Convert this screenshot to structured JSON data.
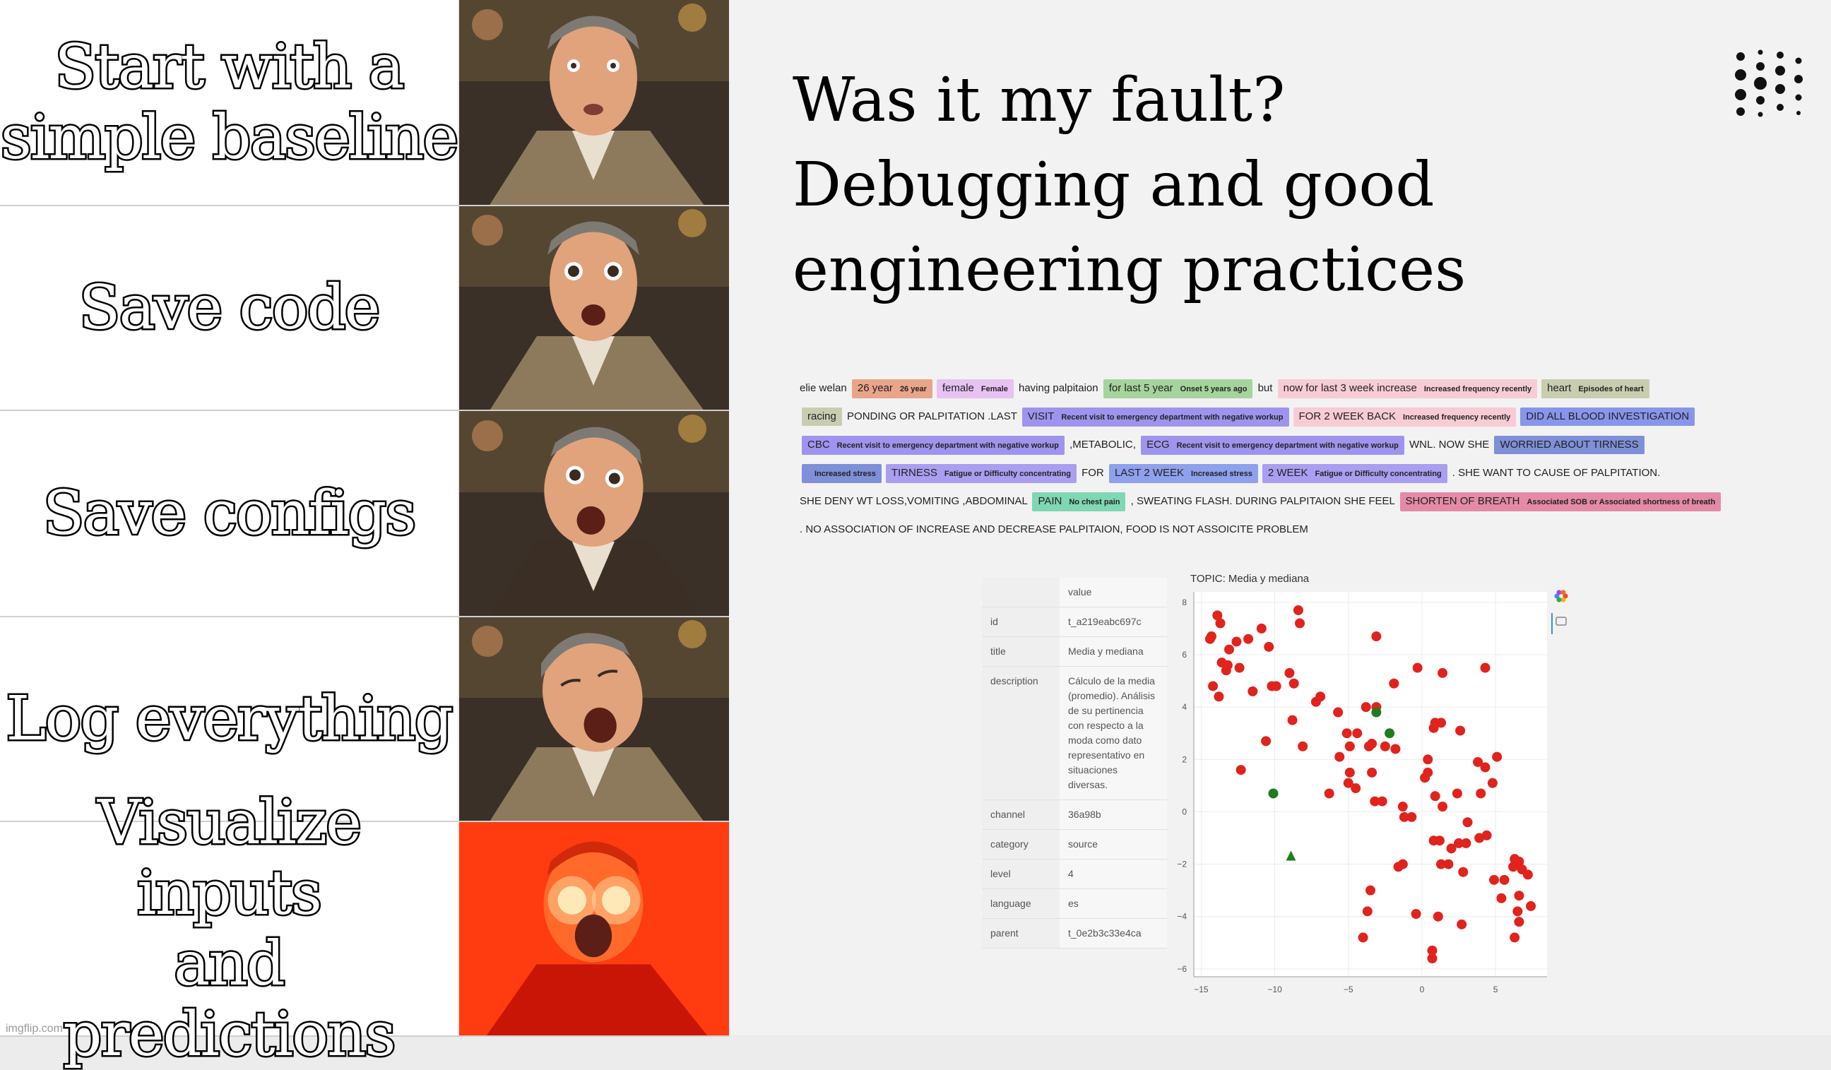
{
  "meme": {
    "rows": [
      {
        "caption": "Start with a\nsimple baseline",
        "image": "reaction-face-neutral"
      },
      {
        "caption": "Save code",
        "image": "reaction-face-surprised"
      },
      {
        "caption": "Save configs",
        "image": "reaction-face-amazed"
      },
      {
        "caption": "Log everything",
        "image": "reaction-face-ecstatic"
      },
      {
        "caption": "Visualize inputs\nand predictions",
        "image": "reaction-face-glowing-eyes"
      }
    ],
    "watermark": "imgflip.com"
  },
  "slide": {
    "title": "Was it my fault?\nDebugging and good\nengineering practices",
    "logo_icon": "dots-logo-icon",
    "ner_lines": [
      [
        {
          "t": "elie welan"
        },
        {
          "t": "26 year",
          "l": "26 year",
          "c": "#e9a58a"
        },
        {
          "t": "female",
          "l": "Female",
          "c": "#e7c2f2"
        },
        {
          "t": "having palpitaion"
        },
        {
          "t": "for last 5 year",
          "l": "Onset 5 years ago",
          "c": "#a5d49c"
        },
        {
          "t": "but"
        },
        {
          "t": "now for last 3 week increase",
          "l": "Increased frequency recently",
          "c": "#f7ccd5"
        },
        {
          "t": "heart",
          "l": "Episodes of heart",
          "c": "#c8cdb0"
        }
      ],
      [
        {
          "t": "racing",
          "c": "#c8cdb0"
        },
        {
          "t": "PONDING OR PALPITATION .LAST"
        },
        {
          "t": "VISIT",
          "l": "Recent visit to emergency department with negative workup",
          "c": "#9e94ee"
        },
        {
          "t": "FOR 2 WEEK BACK",
          "l": "Increased frequency recently",
          "c": "#f7ccd5"
        },
        {
          "t": "DID ALL BLOOD INVESTIGATION",
          "c": "#8795ea"
        }
      ],
      [
        {
          "t": "CBC",
          "l": "Recent visit to emergency department with negative workup",
          "c": "#9e94ee"
        },
        {
          "t": ",METABOLIC,"
        },
        {
          "t": "ECG",
          "l": "Recent visit to emergency department with negative workup",
          "c": "#9e94ee"
        },
        {
          "t": "WNL. NOW SHE"
        },
        {
          "t": "WORRIED ABOUT TIRNESS",
          "c": "#7f8fd8"
        }
      ],
      [
        {
          "t": "",
          "l": "Increased stress",
          "c": "#7f8fd8"
        },
        {
          "t": "TIRNESS",
          "l": "Fatigue or Difficulty concentrating",
          "c": "#a99ef0"
        },
        {
          "t": "FOR"
        },
        {
          "t": "LAST 2 WEEK",
          "l": "Increased stress",
          "c": "#8fa0ec"
        },
        {
          "t": "2 WEEK",
          "l": "Fatigue or Difficulty concentrating",
          "c": "#a99ef0"
        },
        {
          "t": ". SHE WANT TO CAUSE OF PALPITATION."
        }
      ],
      [
        {
          "t": "SHE DENY WT LOSS,VOMITING ,ABDOMINAL"
        },
        {
          "t": "PAIN",
          "l": "No chest pain",
          "c": "#7fd7b3"
        },
        {
          "t": ", SWEATING FLASH. DURING PALPITAION SHE FEEL"
        },
        {
          "t": "SHORTEN OF BREATH",
          "l": "Associated SOB or Associated shortness of breath",
          "c": "#e48aa7"
        }
      ],
      [
        {
          "t": ". NO ASSOCIATION OF INCREASE AND DECREASE PALPITAION, FOOD IS NOT ASSOICITE PROBLEM"
        }
      ]
    ],
    "table": {
      "header_value": "value",
      "rows": [
        {
          "key": "id",
          "value": "t_a219eabc697c"
        },
        {
          "key": "title",
          "value": "Media y mediana"
        },
        {
          "key": "description",
          "value": "Cálculo de la media (promedio). Análisis de su pertinencia con respecto a la moda como dato representativo en situaciones diversas."
        },
        {
          "key": "channel",
          "value": "36a98b"
        },
        {
          "key": "category",
          "value": "source"
        },
        {
          "key": "level",
          "value": "4"
        },
        {
          "key": "language",
          "value": "es"
        },
        {
          "key": "parent",
          "value": "t_0e2b3c33e4ca"
        }
      ]
    }
  },
  "chart_data": {
    "type": "scatter",
    "title": "TOPIC: Media y mediana",
    "xlim": [
      -15.5,
      8.5
    ],
    "ylim": [
      -6.3,
      8.4
    ],
    "xticks": [
      -15,
      -10,
      -5,
      0,
      5
    ],
    "yticks": [
      -6,
      -4,
      -2,
      0,
      2,
      4,
      6,
      8
    ],
    "grid": true,
    "toolbar_icons": [
      "color-wheel-icon",
      "comment-icon"
    ],
    "series": [
      {
        "color": "#e0231c",
        "marker": "circle",
        "points": [
          [
            -14.3,
            6.7
          ],
          [
            -14.4,
            6.6
          ],
          [
            -13.9,
            7.5
          ],
          [
            -13.7,
            7.2
          ],
          [
            -13.1,
            6.2
          ],
          [
            -12.6,
            6.5
          ],
          [
            -13.6,
            5.7
          ],
          [
            -13.3,
            5.4
          ],
          [
            -13.2,
            5.6
          ],
          [
            -12.4,
            5.5
          ],
          [
            -14.2,
            4.8
          ],
          [
            -13.8,
            4.4
          ],
          [
            -11.5,
            4.6
          ],
          [
            -11.8,
            6.6
          ],
          [
            -10.9,
            7.0
          ],
          [
            -10.4,
            6.3
          ],
          [
            -10.2,
            4.8
          ],
          [
            -9.9,
            4.8
          ],
          [
            -8.4,
            7.7
          ],
          [
            -8.3,
            7.2
          ],
          [
            -8.7,
            4.9
          ],
          [
            -8.8,
            3.5
          ],
          [
            -7.2,
            4.2
          ],
          [
            -9.0,
            5.3
          ],
          [
            -8.1,
            2.5
          ],
          [
            -6.9,
            4.4
          ],
          [
            -12.3,
            1.6
          ],
          [
            -10.6,
            2.7
          ],
          [
            -5.7,
            3.8
          ],
          [
            -5.1,
            3.0
          ],
          [
            -4.9,
            2.5
          ],
          [
            -4.4,
            3.0
          ],
          [
            -3.8,
            4.0
          ],
          [
            -3.6,
            2.5
          ],
          [
            -3.4,
            2.6
          ],
          [
            -3.1,
            4.0
          ],
          [
            -2.5,
            2.5
          ],
          [
            -1.8,
            2.4
          ],
          [
            -1.9,
            4.9
          ],
          [
            -3.1,
            6.7
          ],
          [
            -0.3,
            5.5
          ],
          [
            1.4,
            5.3
          ],
          [
            4.3,
            5.5
          ],
          [
            -5.6,
            2.1
          ],
          [
            -6.3,
            0.7
          ],
          [
            -5.0,
            1.1
          ],
          [
            -3.4,
            1.5
          ],
          [
            -4.5,
            0.9
          ],
          [
            -3.2,
            0.4
          ],
          [
            -4.9,
            1.5
          ],
          [
            -2.7,
            0.4
          ],
          [
            -1.3,
            0.2
          ],
          [
            -0.7,
            -0.2
          ],
          [
            -1.2,
            -0.2
          ],
          [
            -1.3,
            -2.0
          ],
          [
            -1.6,
            -2.1
          ],
          [
            0.4,
            2.0
          ],
          [
            0.2,
            1.3
          ],
          [
            0.8,
            3.2
          ],
          [
            0.9,
            3.4
          ],
          [
            1.3,
            3.4
          ],
          [
            0.4,
            1.5
          ],
          [
            0.9,
            0.6
          ],
          [
            1.4,
            0.2
          ],
          [
            2.4,
            0.7
          ],
          [
            2.6,
            3.1
          ],
          [
            3.1,
            -0.4
          ],
          [
            3.8,
            1.9
          ],
          [
            4.0,
            0.7
          ],
          [
            4.8,
            1.1
          ],
          [
            4.3,
            1.7
          ],
          [
            5.1,
            2.1
          ],
          [
            0.8,
            -1.1
          ],
          [
            1.2,
            -1.1
          ],
          [
            1.3,
            -2.0
          ],
          [
            2.0,
            -1.4
          ],
          [
            2.5,
            -1.2
          ],
          [
            3.0,
            -1.2
          ],
          [
            2.8,
            -2.3
          ],
          [
            3.9,
            -1.0
          ],
          [
            4.4,
            -0.9
          ],
          [
            1.8,
            -2.0
          ],
          [
            4.9,
            -2.6
          ],
          [
            5.6,
            -2.6
          ],
          [
            6.2,
            -2.1
          ],
          [
            6.6,
            -1.9
          ],
          [
            6.8,
            -2.2
          ],
          [
            7.2,
            -2.4
          ],
          [
            6.3,
            -1.8
          ],
          [
            5.4,
            -3.3
          ],
          [
            6.6,
            -3.2
          ],
          [
            6.5,
            -3.8
          ],
          [
            6.6,
            -4.2
          ],
          [
            7.4,
            -3.6
          ],
          [
            6.3,
            -4.8
          ],
          [
            1.1,
            -4.0
          ],
          [
            2.7,
            -4.3
          ],
          [
            -0.4,
            -3.9
          ],
          [
            -3.5,
            -3.0
          ],
          [
            -3.7,
            -3.8
          ],
          [
            -4.0,
            -4.8
          ],
          [
            0.7,
            -5.3
          ],
          [
            0.7,
            -5.6
          ]
        ]
      },
      {
        "color": "#1e7d1e",
        "marker": "circle",
        "points": [
          [
            -10.1,
            0.7
          ],
          [
            -3.1,
            3.8
          ],
          [
            -2.2,
            3.0
          ]
        ]
      },
      {
        "color": "#1e7d1e",
        "marker": "triangle",
        "points": [
          [
            -8.9,
            -1.7
          ]
        ]
      }
    ]
  }
}
